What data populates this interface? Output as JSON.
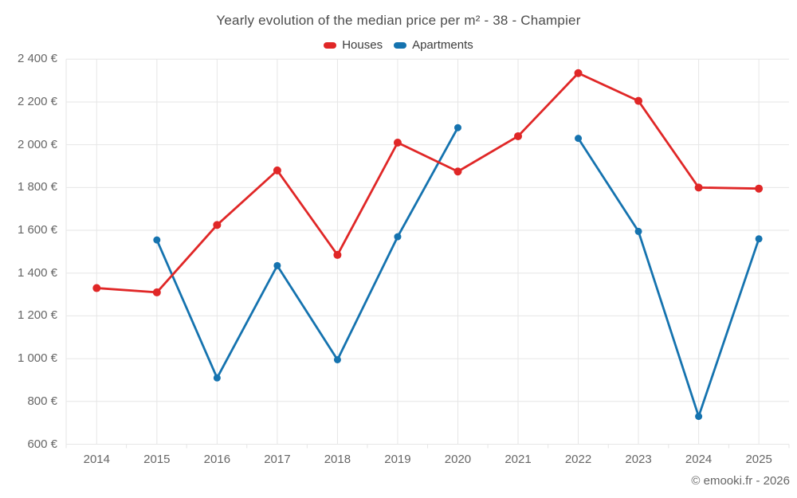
{
  "title": "Yearly evolution of the median price per m² - 38 - Champier",
  "copyright": "© emooki.fr - 2026",
  "colors": {
    "houses": "#e02727",
    "apartments": "#1573af",
    "grid": "#e6e6e6",
    "title_text": "#4c4c4c",
    "tick_text": "#666666"
  },
  "chart_data": {
    "type": "line",
    "title": "Yearly evolution of the median price per m² - 38 - Champier",
    "xlabel": "",
    "ylabel": "",
    "ylim": [
      600,
      2400
    ],
    "grid": true,
    "legend_position": "top",
    "categories": [
      "2014",
      "2015",
      "2016",
      "2017",
      "2018",
      "2019",
      "2020",
      "2021",
      "2022",
      "2023",
      "2024",
      "2025"
    ],
    "y_ticks": {
      "values": [
        600,
        800,
        1000,
        1200,
        1400,
        1600,
        1800,
        2000,
        2200,
        2400
      ],
      "labels": [
        "600 €",
        "800 €",
        "1 000 €",
        "1 200 €",
        "1 400 €",
        "1 600 €",
        "1 800 €",
        "2 000 €",
        "2 200 €",
        "2 400 €"
      ]
    },
    "series": [
      {
        "name": "Houses",
        "color": "#e02727",
        "values": [
          1330,
          1310,
          1625,
          1880,
          1485,
          2010,
          1875,
          2040,
          2335,
          2205,
          1800,
          1795
        ]
      },
      {
        "name": "Apartments",
        "color": "#1573af",
        "values": [
          null,
          1555,
          910,
          1435,
          995,
          1570,
          2080,
          null,
          2030,
          1595,
          730,
          1560
        ]
      }
    ]
  }
}
